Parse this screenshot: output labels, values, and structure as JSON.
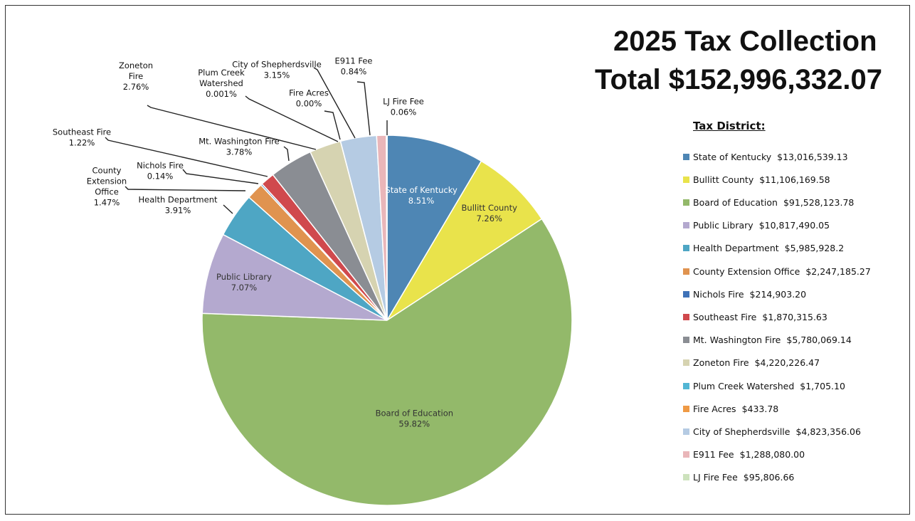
{
  "title_line1": "2025 Tax Collection",
  "title_line2": "Total $152,996,332.07",
  "legend_title": "Tax District:",
  "chart_data": {
    "type": "pie",
    "title": "2025 Tax Collection",
    "subtitle": "Total $152,996,332.07",
    "legend_title": "Tax District:",
    "legend_position": "right",
    "slices": [
      {
        "name": "State of Kentucky",
        "amount": "$13,016,539.13",
        "percent_label": "8.51%",
        "value": 8.51,
        "color": "#4e86b4"
      },
      {
        "name": "Bullitt County",
        "amount": "$11,106,169.58",
        "percent_label": "7.26%",
        "value": 7.26,
        "color": "#e9e34b"
      },
      {
        "name": "Board of Education",
        "amount": "$91,528,123.78",
        "percent_label": "59.82%",
        "value": 59.82,
        "color": "#93b96a"
      },
      {
        "name": "Public Library",
        "amount": "$10,817,490.05",
        "percent_label": "7.07%",
        "value": 7.07,
        "color": "#b4a9cf"
      },
      {
        "name": "Health Department",
        "amount": "$5,985,928.2",
        "percent_label": "3.91%",
        "value": 3.91,
        "color": "#4ea6c4"
      },
      {
        "name": "County Extension Office",
        "amount": "$2,247,185.27",
        "percent_label": "1.47%",
        "value": 1.47,
        "color": "#e0934f"
      },
      {
        "name": "Nichols Fire",
        "amount": "$214,903.20",
        "percent_label": "0.14%",
        "value": 0.14,
        "color": "#3f72b8"
      },
      {
        "name": "Southeast Fire",
        "amount": "$1,870,315.63",
        "percent_label": "1.22%",
        "value": 1.22,
        "color": "#d0494d"
      },
      {
        "name": "Mt. Washington Fire",
        "amount": "$5,780,069.14",
        "percent_label": "3.78%",
        "value": 3.78,
        "color": "#8a8d93"
      },
      {
        "name": "Zoneton Fire",
        "amount": "$4,220,226.47",
        "percent_label": "2.76%",
        "value": 2.76,
        "color": "#d6d3b1"
      },
      {
        "name": "Plum Creek Watershed",
        "amount": "$1,705.10",
        "percent_label": "0.001%",
        "value": 0.001,
        "color": "#52b6d4"
      },
      {
        "name": "Fire Acres",
        "amount": "$433.78",
        "percent_label": "0.00%",
        "value": 0.0003,
        "color": "#ef9a45"
      },
      {
        "name": "City of Shepherdsville",
        "amount": "$4,823,356.06",
        "percent_label": "3.15%",
        "value": 3.15,
        "color": "#b5cbe3"
      },
      {
        "name": "E911 Fee",
        "amount": "$1,288,080.00",
        "percent_label": "0.84%",
        "value": 0.84,
        "color": "#e9b6b9"
      },
      {
        "name": "LJ Fire Fee",
        "amount": "$95,806.66",
        "percent_label": "0.06%",
        "value": 0.06,
        "color": "#cde2bd"
      }
    ],
    "inside_labels": [
      {
        "index": 0,
        "lines": [
          "State of Kentucky",
          "8.51%"
        ],
        "color": "#ffffff"
      },
      {
        "index": 1,
        "lines": [
          "Bullitt County",
          "7.26%"
        ],
        "color": "#333333"
      },
      {
        "index": 2,
        "lines": [
          "Board of Education",
          "59.82%"
        ],
        "color": "#333333"
      },
      {
        "index": 3,
        "lines": [
          "Public Library",
          "7.07%"
        ],
        "color": "#333333"
      }
    ],
    "outside_labels": [
      {
        "index": 4,
        "lines": [
          "Health Department",
          "3.91%"
        ]
      },
      {
        "index": 5,
        "lines": [
          "County",
          "Extension",
          "Office",
          "1.47%"
        ]
      },
      {
        "index": 6,
        "lines": [
          "Nichols Fire",
          "0.14%"
        ]
      },
      {
        "index": 7,
        "lines": [
          "Southeast Fire",
          "1.22%"
        ]
      },
      {
        "index": 8,
        "lines": [
          "Mt. Washington Fire",
          "3.78%"
        ]
      },
      {
        "index": 9,
        "lines": [
          "Zoneton",
          "Fire",
          "2.76%"
        ]
      },
      {
        "index": 10,
        "lines": [
          "Plum Creek",
          "Watershed",
          "0.001%"
        ]
      },
      {
        "index": 11,
        "lines": [
          "Fire Acres",
          "0.00%"
        ]
      },
      {
        "index": 12,
        "lines": [
          "City of Shepherdsville",
          "3.15%"
        ]
      },
      {
        "index": 13,
        "lines": [
          "E911 Fee",
          "0.84%"
        ]
      },
      {
        "index": 14,
        "lines": [
          "LJ Fire Fee",
          "0.06%"
        ]
      }
    ]
  }
}
